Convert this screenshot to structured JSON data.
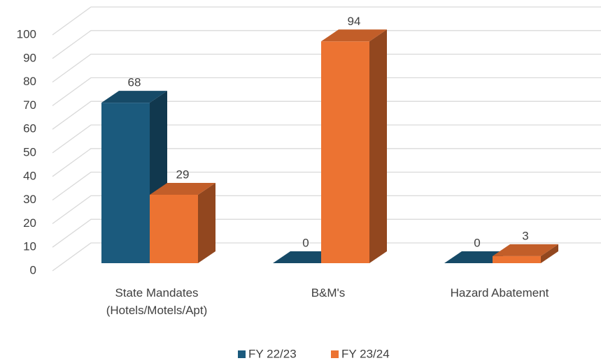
{
  "chart_data": {
    "type": "bar3d",
    "categories": [
      "State Mandates (Hotels/Motels/Apt)",
      "B&M's",
      "Hazard Abatement"
    ],
    "series": [
      {
        "name": "FY 22/23",
        "color": "#1b5a7d",
        "values": [
          68,
          0,
          0
        ]
      },
      {
        "name": "FY 23/24",
        "color": "#ec7332",
        "values": [
          29,
          94,
          3
        ]
      }
    ],
    "ylim": [
      0,
      100
    ],
    "yticks": [
      0,
      10,
      20,
      30,
      40,
      50,
      60,
      70,
      80,
      90,
      100
    ],
    "grid": true,
    "legend": "bottom"
  }
}
